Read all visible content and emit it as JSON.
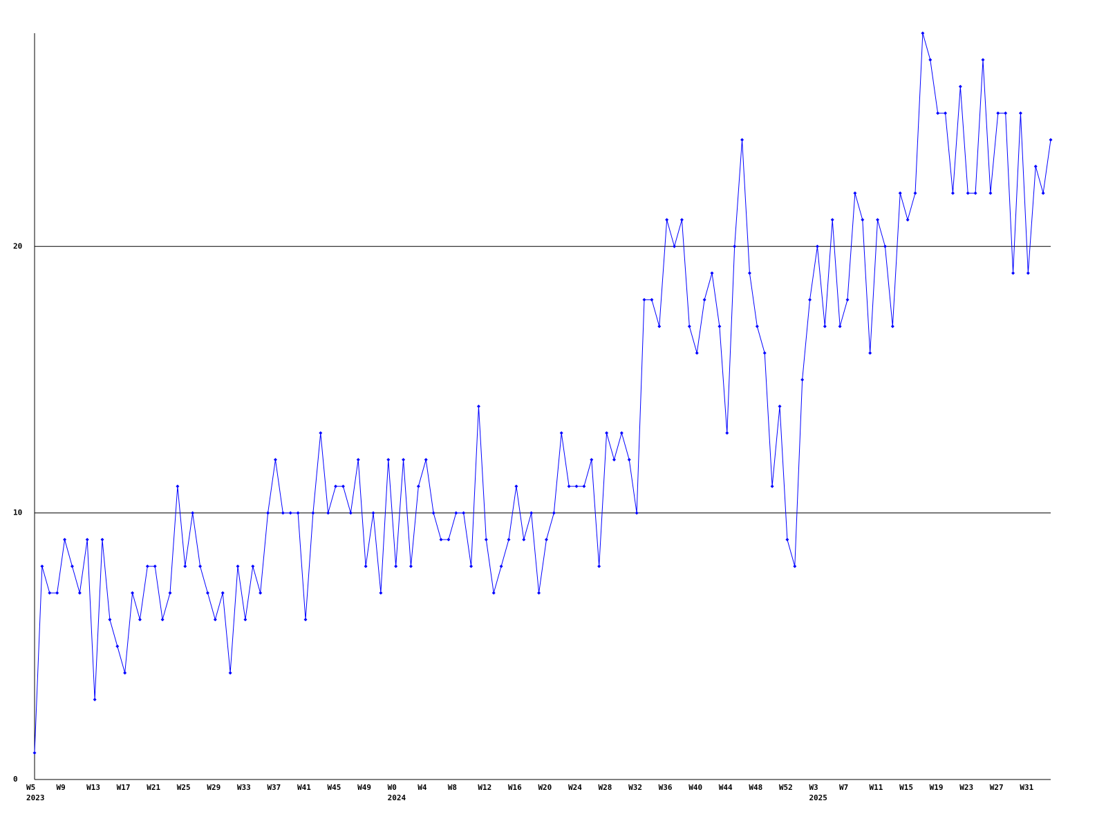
{
  "chart_data": {
    "type": "line",
    "categories": [
      "W5",
      null,
      null,
      null,
      "W9",
      null,
      null,
      null,
      "W13",
      null,
      null,
      null,
      "W17",
      null,
      null,
      null,
      "W21",
      null,
      null,
      null,
      "W25",
      null,
      null,
      null,
      "W29",
      null,
      null,
      null,
      "W33",
      null,
      null,
      null,
      "W37",
      null,
      null,
      null,
      "W41",
      null,
      null,
      null,
      "W45",
      null,
      null,
      null,
      "W49",
      null,
      null,
      null,
      "W0",
      null,
      null,
      null,
      "W4",
      null,
      null,
      null,
      "W8",
      null,
      null,
      null,
      "W12",
      null,
      null,
      null,
      "W16",
      null,
      null,
      null,
      "W20",
      null,
      null,
      null,
      "W24",
      null,
      null,
      null,
      "W28",
      null,
      null,
      null,
      "W32",
      null,
      null,
      null,
      "W36",
      null,
      null,
      null,
      "W40",
      null,
      null,
      null,
      "W44",
      null,
      null,
      null,
      "W48",
      null,
      null,
      null,
      "W52",
      null,
      null,
      null,
      "W3",
      null,
      null,
      null,
      "W7",
      null,
      null,
      null,
      "W11",
      null,
      null,
      null,
      "W15",
      null,
      null,
      null,
      "W19",
      null,
      null,
      null,
      "W23",
      null,
      null,
      null,
      "W27",
      null,
      null,
      null,
      "W31",
      null,
      null,
      null
    ],
    "year_labels": [
      "2023",
      null,
      null,
      null,
      null,
      null,
      null,
      null,
      null,
      null,
      null,
      null,
      null,
      null,
      null,
      null,
      null,
      null,
      null,
      null,
      null,
      null,
      null,
      null,
      null,
      null,
      null,
      null,
      null,
      null,
      null,
      null,
      null,
      null,
      null,
      null,
      null,
      null,
      null,
      null,
      null,
      null,
      null,
      null,
      null,
      null,
      null,
      null,
      "2024",
      null,
      null,
      null,
      null,
      null,
      null,
      null,
      null,
      null,
      null,
      null,
      null,
      null,
      null,
      null,
      null,
      null,
      null,
      null,
      null,
      null,
      null,
      null,
      null,
      null,
      null,
      null,
      null,
      null,
      null,
      null,
      null,
      null,
      null,
      null,
      null,
      null,
      null,
      null,
      null,
      null,
      null,
      null,
      null,
      null,
      null,
      null,
      null,
      null,
      null,
      null,
      null,
      null,
      null,
      null,
      "2025",
      null,
      null,
      null,
      null,
      null,
      null,
      null,
      null,
      null,
      null,
      null,
      null,
      null,
      null,
      null,
      null,
      null,
      null,
      null,
      null,
      null,
      null,
      null,
      null,
      null,
      null,
      null,
      null,
      null,
      null,
      null
    ],
    "series": [
      {
        "color": "#0000ff",
        "values": [
          1,
          8,
          7,
          7,
          9,
          8,
          7,
          9,
          3,
          9,
          6,
          5,
          4,
          7,
          6,
          8,
          8,
          6,
          7,
          11,
          8,
          10,
          8,
          7,
          6,
          7,
          4,
          8,
          6,
          8,
          7,
          10,
          12,
          10,
          10,
          10,
          6,
          10,
          13,
          10,
          11,
          11,
          10,
          12,
          8,
          10,
          7,
          12,
          8,
          12,
          8,
          11,
          12,
          10,
          9,
          9,
          10,
          10,
          8,
          14,
          9,
          7,
          8,
          9,
          11,
          9,
          10,
          7,
          9,
          10,
          13,
          11,
          11,
          11,
          12,
          8,
          13,
          12,
          13,
          12,
          10,
          18,
          18,
          17,
          21,
          20,
          21,
          17,
          16,
          18,
          19,
          17,
          13,
          20,
          24,
          19,
          17,
          16,
          11,
          14,
          9,
          8,
          15,
          18,
          20,
          17,
          21,
          17,
          18,
          22,
          21,
          16,
          21,
          20,
          17,
          22,
          21,
          22,
          28,
          27,
          25,
          25,
          22,
          26,
          22,
          22,
          27,
          22,
          25,
          25,
          19,
          25,
          19,
          23,
          22,
          24
        ]
      }
    ],
    "ylim": [
      0,
      28
    ],
    "yticks": [
      0,
      10,
      20
    ],
    "grid": true
  }
}
